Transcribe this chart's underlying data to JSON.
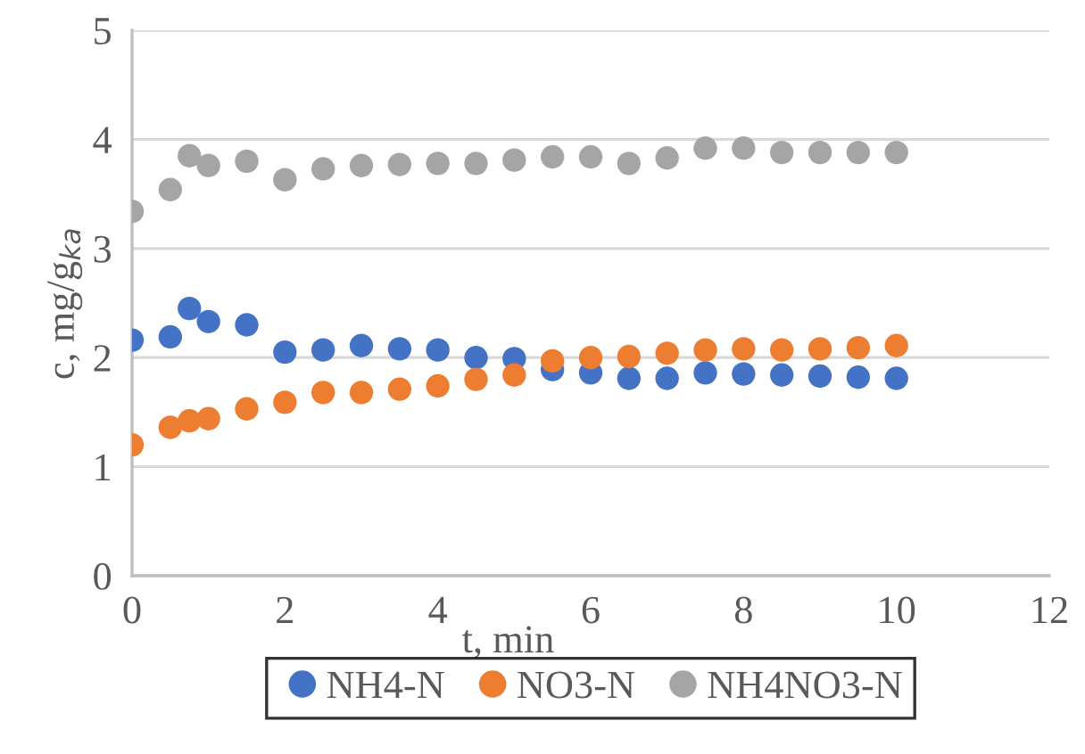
{
  "chart_data": {
    "type": "scatter",
    "xlabel": "t, min",
    "ylabel": "c, mg/g$_{ka}$",
    "x": [
      0,
      0.5,
      0.75,
      1,
      1.5,
      2,
      2.5,
      3,
      3.5,
      4,
      4.5,
      5,
      5.5,
      6,
      6.5,
      7,
      7.5,
      8,
      8.5,
      9,
      9.5,
      10
    ],
    "series": [
      {
        "name": "NH4-N",
        "color": "#4472c4",
        "values": [
          2.16,
          2.19,
          2.45,
          2.33,
          2.3,
          2.05,
          2.07,
          2.11,
          2.08,
          2.07,
          2.0,
          1.99,
          1.89,
          1.86,
          1.81,
          1.81,
          1.86,
          1.85,
          1.84,
          1.83,
          1.82,
          1.81
        ]
      },
      {
        "name": "NO3-N",
        "color": "#ed7d31",
        "values": [
          1.2,
          1.36,
          1.42,
          1.44,
          1.53,
          1.59,
          1.68,
          1.68,
          1.71,
          1.74,
          1.8,
          1.84,
          1.97,
          2.0,
          2.01,
          2.04,
          2.07,
          2.08,
          2.07,
          2.08,
          2.09,
          2.11
        ]
      },
      {
        "name": "NH4NO3-N",
        "color": "#a5a5a5",
        "values": [
          3.34,
          3.54,
          3.85,
          3.76,
          3.8,
          3.63,
          3.73,
          3.76,
          3.77,
          3.78,
          3.78,
          3.81,
          3.84,
          3.84,
          3.78,
          3.83,
          3.92,
          3.92,
          3.88,
          3.88,
          3.88,
          3.88
        ]
      }
    ],
    "xlim": [
      0,
      12
    ],
    "xticks": [
      0,
      2,
      4,
      6,
      8,
      10,
      12
    ],
    "ylim": [
      0,
      5
    ],
    "yticks": [
      0,
      1,
      2,
      3,
      4,
      5
    ],
    "grid": "y",
    "legend": "bottom",
    "marker": "circle"
  }
}
